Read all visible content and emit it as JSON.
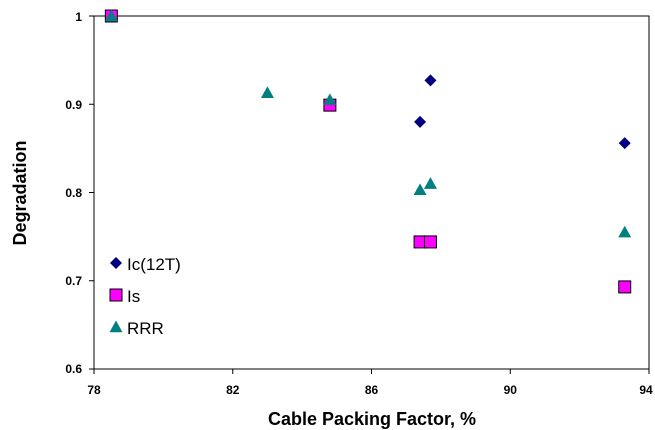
{
  "chart_data": {
    "type": "scatter",
    "title": "",
    "xlabel": "Cable Packing Factor, %",
    "ylabel": "Degradation",
    "xlim": [
      78,
      94
    ],
    "ylim": [
      0.6,
      1
    ],
    "x_ticks": [
      "78",
      "82",
      "86",
      "90",
      "94"
    ],
    "y_ticks": [
      "0.6",
      "0.7",
      "0.8",
      "0.9",
      "1"
    ],
    "grid": false,
    "legend_position": "bottom-left",
    "series": [
      {
        "name": "Ic(12T)",
        "marker": "diamond",
        "color": "#000080",
        "points": [
          [
            78.5,
            1.0
          ],
          [
            84.8,
            0.9
          ],
          [
            87.4,
            0.88
          ],
          [
            87.7,
            0.927
          ],
          [
            93.3,
            0.856
          ]
        ]
      },
      {
        "name": "Is",
        "marker": "square",
        "color": "#FF00FF",
        "points": [
          [
            78.5,
            1.0
          ],
          [
            84.8,
            0.899
          ],
          [
            87.4,
            0.744
          ],
          [
            87.7,
            0.744
          ],
          [
            93.3,
            0.693
          ]
        ]
      },
      {
        "name": "RRR",
        "marker": "triangle",
        "color": "#008080",
        "points": [
          [
            78.5,
            1.0
          ],
          [
            83.0,
            0.913
          ],
          [
            84.8,
            0.905
          ],
          [
            87.4,
            0.803
          ],
          [
            87.7,
            0.81
          ],
          [
            93.3,
            0.755
          ]
        ]
      }
    ]
  }
}
